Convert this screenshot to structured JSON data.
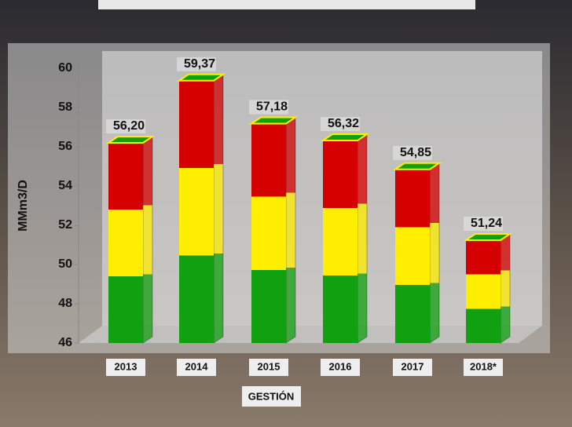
{
  "chart_data": {
    "type": "bar",
    "y_label": "MMm3/D",
    "x_label": "GESTIÓN",
    "categories": [
      "2013",
      "2014",
      "2015",
      "2016",
      "2017",
      "2018*"
    ],
    "values": [
      56.2,
      59.37,
      57.18,
      56.32,
      54.85,
      51.24
    ],
    "value_labels": [
      "56,20",
      "59,37",
      "57,18",
      "56,32",
      "54,85",
      "51,24"
    ],
    "colors": [
      "#d40000",
      "#ffee00",
      "#10a010"
    ],
    "ylim": [
      46,
      60
    ],
    "yticks": [
      46,
      48,
      50,
      52,
      54,
      56,
      58,
      60
    ]
  }
}
